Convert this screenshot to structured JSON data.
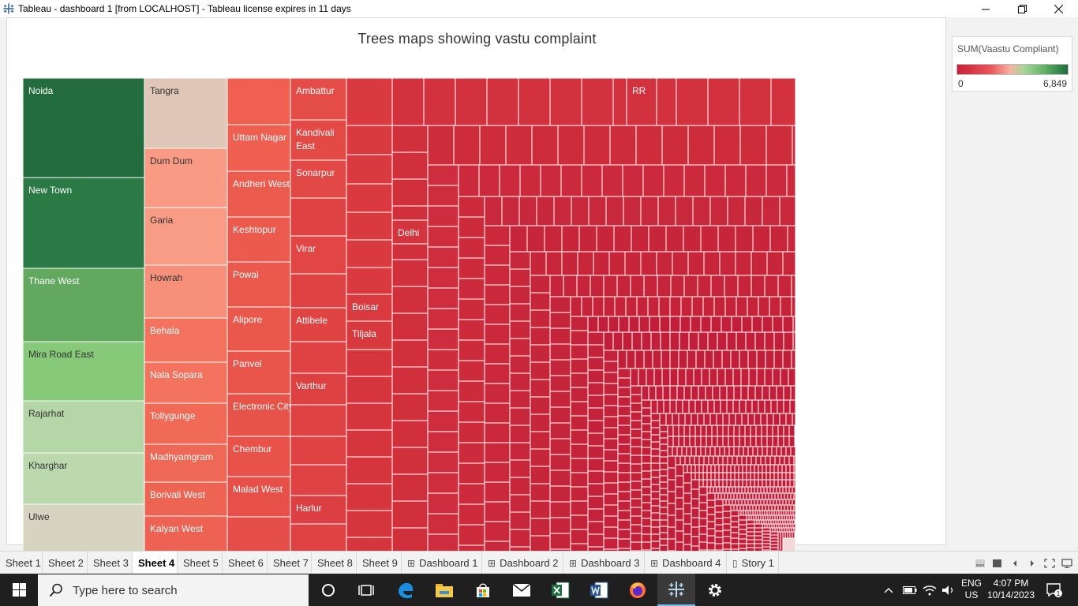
{
  "window": {
    "title": "Tableau - dashboard 1 [from LOCALHOST] - Tableau license expires in 11 days",
    "minimize_icon": "minimize-icon",
    "maximize_icon": "restore-icon",
    "close_icon": "close-icon"
  },
  "chart": {
    "title": "Trees maps showing vastu complaint"
  },
  "legend": {
    "title": "SUM(Vaastu Compliant)",
    "min": "0",
    "max": "6,849",
    "colors": [
      "#c8203a",
      "#e8545a",
      "#f7b3a3",
      "#a9d69a",
      "#5fae64",
      "#1f6b3c"
    ]
  },
  "chart_data": {
    "type": "treemap",
    "title": "Trees maps showing vastu complaint",
    "color_field": "SUM(Vaastu Compliant)",
    "color_range": [
      0,
      6849
    ],
    "labeled_cells": [
      {
        "label": "Noida",
        "color": "#236c3e"
      },
      {
        "label": "New Town",
        "color": "#2b7a45"
      },
      {
        "label": "Thane West",
        "color": "#63a85f"
      },
      {
        "label": "Mira Road East",
        "color": "#86c978"
      },
      {
        "label": "Rajarhat",
        "color": "#b5d6a6"
      },
      {
        "label": "Kharghar",
        "color": "#bcd9ae"
      },
      {
        "label": "Ulwe",
        "color": "#d6d3c1"
      },
      {
        "label": "Tangra",
        "color": "#dfc6b7"
      },
      {
        "label": "Dum Dum",
        "color": "#f89a84"
      },
      {
        "label": "Garia",
        "color": "#f99c86"
      },
      {
        "label": "Howrah",
        "color": "#f7907b"
      },
      {
        "label": "Behala",
        "color": "#f3735e"
      },
      {
        "label": "Nala Sopara",
        "color": "#f3735e"
      },
      {
        "label": "Tollygunge",
        "color": "#f06a56"
      },
      {
        "label": "Madhyamgram",
        "color": "#ef6755"
      },
      {
        "label": "Borivali West",
        "color": "#ee6453"
      },
      {
        "label": "Kalyan West",
        "color": "#ed6252"
      },
      {
        "label": "Uttam Nagar",
        "color": "#ee5f50"
      },
      {
        "label": "Andheri West",
        "color": "#ec5c4e"
      },
      {
        "label": "Keshtopur",
        "color": "#eb5a4d"
      },
      {
        "label": "Powai",
        "color": "#ea594c"
      },
      {
        "label": "Alipore",
        "color": "#ea574b"
      },
      {
        "label": "Panvel",
        "color": "#e9554a"
      },
      {
        "label": "Electronic City Phase",
        "color": "#e85349"
      },
      {
        "label": "Chembur",
        "color": "#e85249"
      },
      {
        "label": "Malad West",
        "color": "#e75048"
      },
      {
        "label": "Ambattur",
        "color": "#e44c47"
      },
      {
        "label": "Kandivali East",
        "color": "#e34a46"
      },
      {
        "label": "Sonarpur",
        "color": "#e24845"
      },
      {
        "label": "Virar",
        "color": "#e14644"
      },
      {
        "label": "Attibele",
        "color": "#df4443"
      },
      {
        "label": "Varthur",
        "color": "#dd4142"
      },
      {
        "label": "Harlur",
        "color": "#db3f41"
      },
      {
        "label": "Boisar",
        "color": "#d83a3f"
      },
      {
        "label": "Tiljala",
        "color": "#d7393f"
      },
      {
        "label": "Delhi",
        "color": "#d3343d"
      },
      {
        "label": "RR",
        "color": "#d2323d"
      }
    ]
  },
  "tabs": [
    {
      "label": "Sheet 1",
      "kind": "sheet"
    },
    {
      "label": "Sheet 2",
      "kind": "sheet"
    },
    {
      "label": "Sheet 3",
      "kind": "sheet"
    },
    {
      "label": "Sheet 4",
      "kind": "sheet",
      "active": true
    },
    {
      "label": "Sheet 5",
      "kind": "sheet"
    },
    {
      "label": "Sheet 6",
      "kind": "sheet"
    },
    {
      "label": "Sheet 7",
      "kind": "sheet"
    },
    {
      "label": "Sheet 8",
      "kind": "sheet"
    },
    {
      "label": "Sheet 9",
      "kind": "sheet"
    },
    {
      "label": "Dashboard 1",
      "kind": "dashboard"
    },
    {
      "label": "Dashboard 2",
      "kind": "dashboard"
    },
    {
      "label": "Dashboard 3",
      "kind": "dashboard"
    },
    {
      "label": "Dashboard 4",
      "kind": "dashboard"
    },
    {
      "label": "Story 1",
      "kind": "story"
    }
  ],
  "taskbar": {
    "search_placeholder": "Type here to search",
    "apps": [
      "cortana-icon",
      "task-view-icon",
      "edge-icon",
      "file-explorer-icon",
      "store-icon",
      "mail-icon",
      "excel-icon",
      "word-icon",
      "firefox-icon",
      "tableau-icon",
      "settings-icon"
    ],
    "lang_line1": "ENG",
    "lang_line2": "US",
    "time": "4:07 PM",
    "date": "10/14/2023",
    "notification_count": "1"
  }
}
